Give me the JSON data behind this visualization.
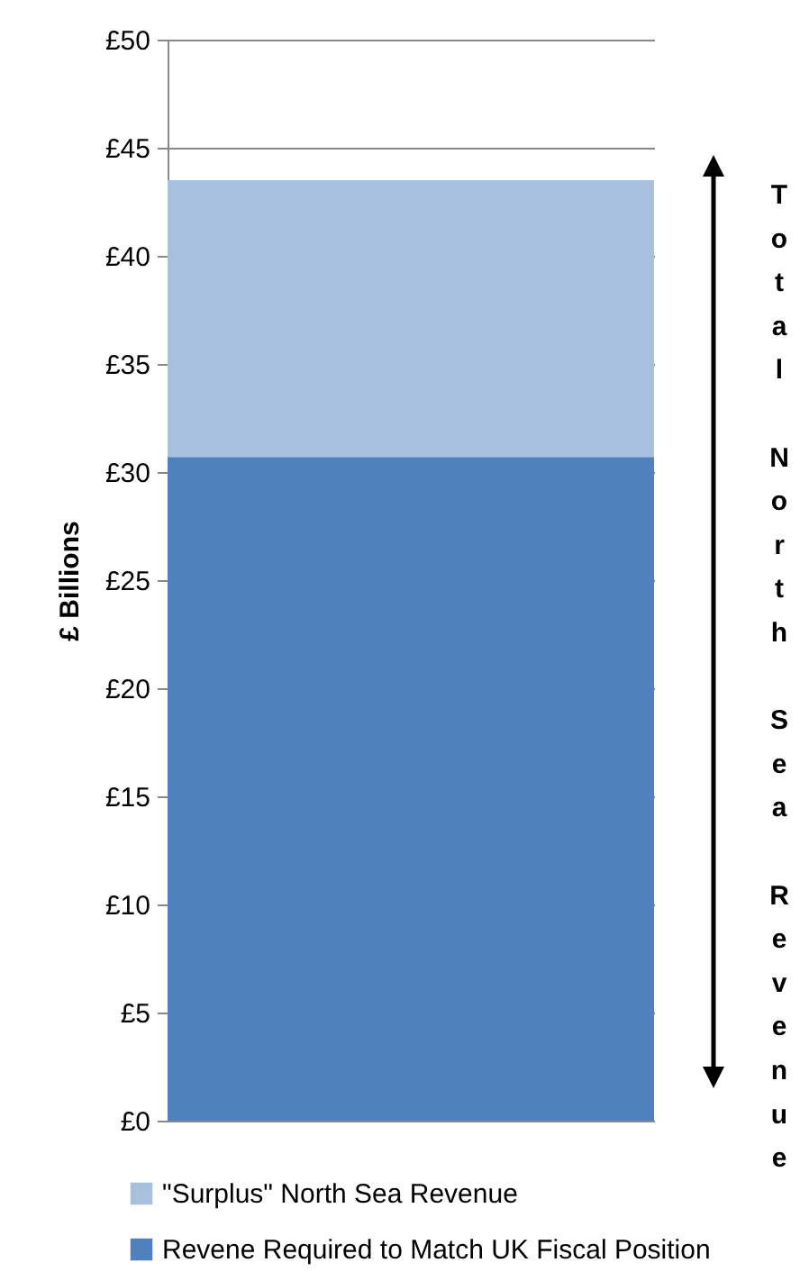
{
  "chart_data": {
    "type": "bar",
    "stacked": true,
    "ylabel": "£ Billions",
    "categories": [
      null
    ],
    "series": [
      {
        "name": "Revene Required to Match UK Fiscal Position",
        "color": "#4f81bd",
        "values": [
          30.7
        ]
      },
      {
        "name": "\"Surplus\" North Sea Revenue",
        "color": "#a7c0de",
        "values": [
          12.8
        ]
      }
    ],
    "ylim": [
      0,
      50
    ],
    "yticks": [
      {
        "value": 0,
        "label": "£0"
      },
      {
        "value": 5,
        "label": "£5"
      },
      {
        "value": 10,
        "label": "£10"
      },
      {
        "value": 15,
        "label": "£15"
      },
      {
        "value": 20,
        "label": "£20"
      },
      {
        "value": 25,
        "label": "£25"
      },
      {
        "value": 30,
        "label": "£30"
      },
      {
        "value": 35,
        "label": "£35"
      },
      {
        "value": 40,
        "label": "£40"
      },
      {
        "value": 45,
        "label": "£45"
      },
      {
        "value": 50,
        "label": "£50"
      }
    ],
    "grid": "y",
    "legend": "bottom",
    "tick_labels": "y",
    "annotations": [
      "Total North Sea Revenue"
    ]
  }
}
